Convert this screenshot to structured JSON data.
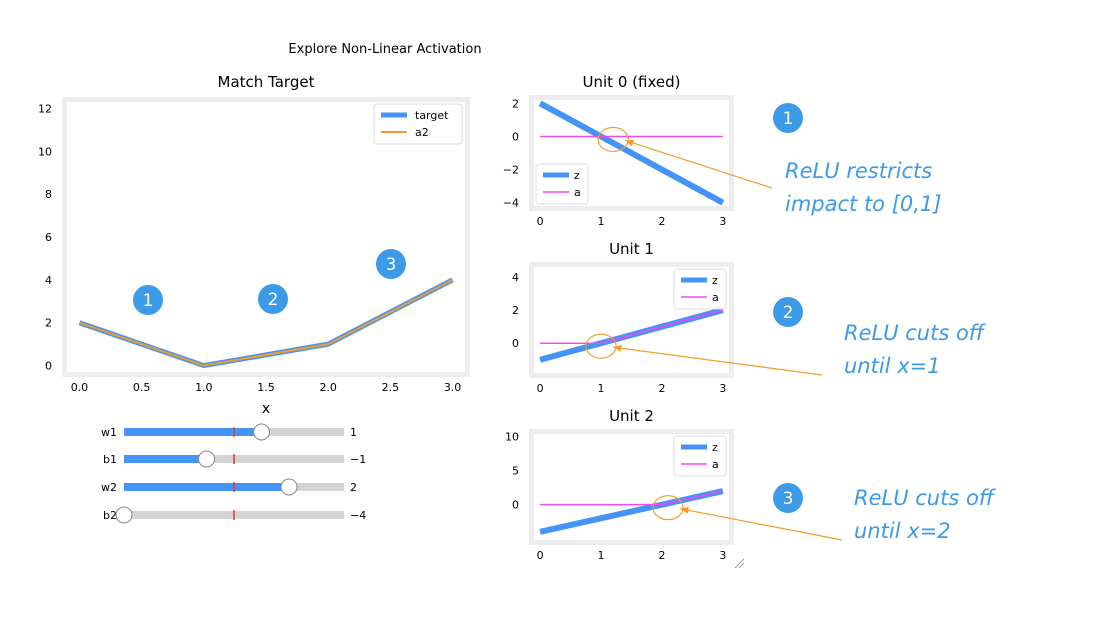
{
  "figure": {
    "title": "Explore Non-Linear Activation"
  },
  "colors": {
    "target": "#4493f7",
    "a2": "#f39c2a",
    "z": "#4493f7",
    "a": "#f049f0",
    "frame": "#ededed",
    "slider_fill": "#4493f7",
    "slider_track": "#d4d4d4",
    "slider_init": "#e8382c",
    "badge": "#3d9ae8",
    "note_text": "#3d9ae8",
    "arrow": "#f39c2a"
  },
  "chart_data": [
    {
      "type": "line",
      "title": "Match Target",
      "xlabel": "x",
      "ylabel": "",
      "xlim": [
        -0.1,
        3.1
      ],
      "ylim": [
        -0.3,
        12.3
      ],
      "xticks": [
        "0.0",
        "0.5",
        "1.0",
        "1.5",
        "2.0",
        "2.5",
        "3.0"
      ],
      "yticks": [
        "0",
        "2",
        "4",
        "6",
        "8",
        "10",
        "12"
      ],
      "legend_position": "top-right",
      "series": [
        {
          "name": "target",
          "x": [
            0,
            1,
            2,
            3
          ],
          "y": [
            2,
            0,
            1,
            4
          ]
        },
        {
          "name": "a2",
          "x": [
            0,
            1,
            2,
            3
          ],
          "y": [
            2,
            0,
            1,
            4
          ]
        }
      ],
      "annotations": [
        "1",
        "2",
        "3"
      ]
    },
    {
      "type": "line",
      "title": "Unit 0 (fixed)",
      "xlim": [
        -0.1,
        3.1
      ],
      "ylim": [
        -4.2,
        2.2
      ],
      "xticks": [
        "0",
        "1",
        "2",
        "3"
      ],
      "yticks": [
        "2",
        "0",
        "−2",
        "−4"
      ],
      "legend_position": "bottom-left",
      "series": [
        {
          "name": "z",
          "x": [
            0,
            3
          ],
          "y": [
            2,
            -4
          ]
        },
        {
          "name": "a",
          "x": [
            0,
            1,
            3
          ],
          "y": [
            0,
            0,
            0
          ]
        }
      ]
    },
    {
      "type": "line",
      "title": "Unit 1",
      "xlim": [
        -0.1,
        3.1
      ],
      "ylim": [
        -1.8,
        4.6
      ],
      "xticks": [
        "0",
        "1",
        "2",
        "3"
      ],
      "yticks": [
        "4",
        "2",
        "0"
      ],
      "legend_position": "top-right",
      "series": [
        {
          "name": "z",
          "x": [
            0,
            3
          ],
          "y": [
            -1,
            2
          ]
        },
        {
          "name": "a",
          "x": [
            0,
            1,
            3
          ],
          "y": [
            0,
            0,
            2
          ]
        }
      ]
    },
    {
      "type": "line",
      "title": "Unit 2",
      "xlim": [
        -0.1,
        3.1
      ],
      "ylim": [
        -5.2,
        10.4
      ],
      "xticks": [
        "0",
        "1",
        "2",
        "3"
      ],
      "yticks": [
        "10",
        "5",
        "0"
      ],
      "legend_position": "top-right",
      "series": [
        {
          "name": "z",
          "x": [
            0,
            3
          ],
          "y": [
            -4,
            2
          ]
        },
        {
          "name": "a",
          "x": [
            0,
            2,
            3
          ],
          "y": [
            0,
            0,
            2
          ]
        }
      ]
    }
  ],
  "sliders": [
    {
      "label": "w1",
      "min": -4,
      "max": 4,
      "value": 1,
      "init": 0,
      "value_text": "1"
    },
    {
      "label": "b1",
      "min": -4,
      "max": 4,
      "value": -1,
      "init": 0,
      "value_text": "−1"
    },
    {
      "label": "w2",
      "min": -4,
      "max": 4,
      "value": 2,
      "init": 0,
      "value_text": "2"
    },
    {
      "label": "b2",
      "min": -4,
      "max": 4,
      "value": -4,
      "init": 0,
      "value_text": "−4"
    }
  ],
  "notes": [
    {
      "badge": "1",
      "lines": [
        "ReLU restricts",
        "impact to [0,1]"
      ]
    },
    {
      "badge": "2",
      "lines": [
        "ReLU cuts off",
        "until x=1"
      ]
    },
    {
      "badge": "3",
      "lines": [
        "ReLU cuts off",
        "until x=2"
      ]
    }
  ]
}
